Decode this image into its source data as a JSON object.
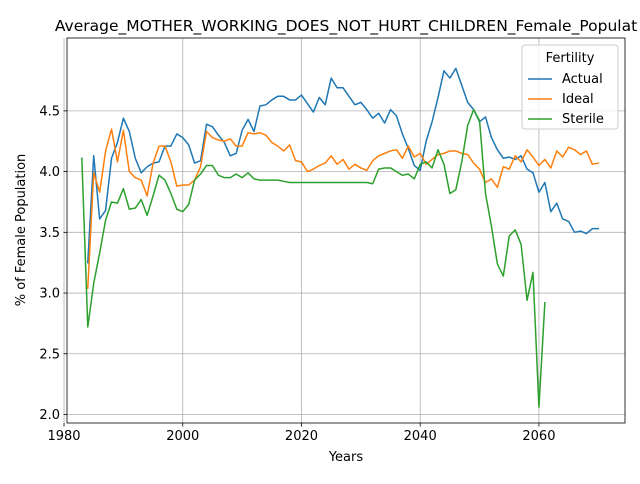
{
  "chart_data": {
    "type": "line",
    "title": "Average_MOTHER_WORKING_DOES_NOT_HURT_CHILDREN_Female_Populat",
    "xlabel": "Years",
    "ylabel": "% of Female Population",
    "xlim": [
      1980.5,
      2074.5
    ],
    "ylim": [
      1.93,
      5.1
    ],
    "xticks": [
      1980,
      2000,
      2020,
      2040,
      2060
    ],
    "xtick_labels": [
      "1980",
      "2000",
      "2020",
      "2040",
      "2060"
    ],
    "yticks": [
      2.0,
      2.5,
      3.0,
      3.5,
      4.0,
      4.5
    ],
    "ytick_labels": [
      "2.0",
      "2.5",
      "3.0",
      "3.5",
      "4.0",
      "4.5"
    ],
    "grid": true,
    "legend": {
      "title": "Fertility",
      "placement": "top-right"
    },
    "series": [
      {
        "name": "Actual",
        "color": "#1f77b4",
        "points": [
          [
            1984,
            3.25
          ],
          [
            1985,
            4.13
          ],
          [
            1986,
            3.61
          ],
          [
            1987,
            3.68
          ],
          [
            1988,
            4.11
          ],
          [
            1989,
            4.24
          ],
          [
            1990,
            4.44
          ],
          [
            1991,
            4.33
          ],
          [
            1992,
            4.11
          ],
          [
            1993,
            3.99
          ],
          [
            1994,
            4.04
          ],
          [
            1995,
            4.07
          ],
          [
            1996,
            4.08
          ],
          [
            1997,
            4.21
          ],
          [
            1998,
            4.21
          ],
          [
            1999,
            4.31
          ],
          [
            2000,
            4.28
          ],
          [
            2001,
            4.22
          ],
          [
            2002,
            4.07
          ],
          [
            2003,
            4.09
          ],
          [
            2004,
            4.39
          ],
          [
            2005,
            4.37
          ],
          [
            2006,
            4.3
          ],
          [
            2007,
            4.24
          ],
          [
            2008,
            4.13
          ],
          [
            2009,
            4.15
          ],
          [
            2010,
            4.34
          ],
          [
            2011,
            4.43
          ],
          [
            2012,
            4.33
          ],
          [
            2013,
            4.54
          ],
          [
            2014,
            4.55
          ],
          [
            2015,
            4.59
          ],
          [
            2016,
            4.62
          ],
          [
            2017,
            4.62
          ],
          [
            2018,
            4.59
          ],
          [
            2019,
            4.59
          ],
          [
            2020,
            4.63
          ],
          [
            2021,
            4.56
          ],
          [
            2022,
            4.49
          ],
          [
            2023,
            4.61
          ],
          [
            2024,
            4.55
          ],
          [
            2025,
            4.77
          ],
          [
            2026,
            4.69
          ],
          [
            2027,
            4.69
          ],
          [
            2028,
            4.62
          ],
          [
            2029,
            4.55
          ],
          [
            2030,
            4.57
          ],
          [
            2031,
            4.51
          ],
          [
            2032,
            4.44
          ],
          [
            2033,
            4.48
          ],
          [
            2034,
            4.4
          ],
          [
            2035,
            4.51
          ],
          [
            2036,
            4.46
          ],
          [
            2037,
            4.31
          ],
          [
            2038,
            4.19
          ],
          [
            2039,
            4.05
          ],
          [
            2040,
            4.01
          ],
          [
            2041,
            4.25
          ],
          [
            2042,
            4.41
          ],
          [
            2043,
            4.61
          ],
          [
            2044,
            4.83
          ],
          [
            2045,
            4.77
          ],
          [
            2046,
            4.85
          ],
          [
            2047,
            4.71
          ],
          [
            2048,
            4.57
          ],
          [
            2049,
            4.51
          ],
          [
            2050,
            4.41
          ],
          [
            2051,
            4.45
          ],
          [
            2052,
            4.28
          ],
          [
            2053,
            4.18
          ],
          [
            2054,
            4.11
          ],
          [
            2055,
            4.12
          ],
          [
            2056,
            4.1
          ],
          [
            2057,
            4.13
          ],
          [
            2058,
            4.02
          ],
          [
            2059,
            3.99
          ],
          [
            2060,
            3.83
          ],
          [
            2061,
            3.91
          ],
          [
            2062,
            3.67
          ],
          [
            2063,
            3.74
          ],
          [
            2064,
            3.61
          ],
          [
            2065,
            3.59
          ],
          [
            2066,
            3.5
          ],
          [
            2067,
            3.51
          ],
          [
            2068,
            3.49
          ],
          [
            2069,
            3.53
          ],
          [
            2070,
            3.53
          ]
        ]
      },
      {
        "name": "Ideal",
        "color": "#ff7f0e",
        "points": [
          [
            1984,
            3.04
          ],
          [
            1985,
            3.99
          ],
          [
            1986,
            3.83
          ],
          [
            1987,
            4.17
          ],
          [
            1988,
            4.35
          ],
          [
            1989,
            4.08
          ],
          [
            1990,
            4.34
          ],
          [
            1991,
            4.0
          ],
          [
            1992,
            3.95
          ],
          [
            1993,
            3.93
          ],
          [
            1994,
            3.8
          ],
          [
            1995,
            4.07
          ],
          [
            1996,
            4.21
          ],
          [
            1997,
            4.21
          ],
          [
            1998,
            4.08
          ],
          [
            1999,
            3.88
          ],
          [
            2000,
            3.89
          ],
          [
            2001,
            3.89
          ],
          [
            2002,
            3.93
          ],
          [
            2003,
            4.04
          ],
          [
            2004,
            4.33
          ],
          [
            2005,
            4.28
          ],
          [
            2006,
            4.26
          ],
          [
            2007,
            4.25
          ],
          [
            2008,
            4.27
          ],
          [
            2009,
            4.21
          ],
          [
            2010,
            4.21
          ],
          [
            2011,
            4.32
          ],
          [
            2012,
            4.31
          ],
          [
            2013,
            4.32
          ],
          [
            2014,
            4.3
          ],
          [
            2015,
            4.24
          ],
          [
            2016,
            4.21
          ],
          [
            2017,
            4.17
          ],
          [
            2018,
            4.22
          ],
          [
            2019,
            4.09
          ],
          [
            2020,
            4.08
          ],
          [
            2021,
            4.0
          ],
          [
            2022,
            4.02
          ],
          [
            2023,
            4.05
          ],
          [
            2024,
            4.07
          ],
          [
            2025,
            4.13
          ],
          [
            2026,
            4.06
          ],
          [
            2027,
            4.1
          ],
          [
            2028,
            4.02
          ],
          [
            2029,
            4.06
          ],
          [
            2030,
            4.03
          ],
          [
            2031,
            4.01
          ],
          [
            2032,
            4.09
          ],
          [
            2033,
            4.13
          ],
          [
            2034,
            4.15
          ],
          [
            2035,
            4.17
          ],
          [
            2036,
            4.18
          ],
          [
            2037,
            4.11
          ],
          [
            2038,
            4.21
          ],
          [
            2039,
            4.12
          ],
          [
            2040,
            4.15
          ],
          [
            2041,
            4.06
          ],
          [
            2042,
            4.1
          ],
          [
            2043,
            4.14
          ],
          [
            2044,
            4.15
          ],
          [
            2045,
            4.17
          ],
          [
            2046,
            4.17
          ],
          [
            2047,
            4.15
          ],
          [
            2048,
            4.14
          ],
          [
            2049,
            4.07
          ],
          [
            2050,
            4.02
          ],
          [
            2051,
            3.91
          ],
          [
            2052,
            3.94
          ],
          [
            2053,
            3.87
          ],
          [
            2054,
            4.04
          ],
          [
            2055,
            4.02
          ],
          [
            2056,
            4.13
          ],
          [
            2057,
            4.08
          ],
          [
            2058,
            4.18
          ],
          [
            2059,
            4.12
          ],
          [
            2060,
            4.05
          ],
          [
            2061,
            4.1
          ],
          [
            2062,
            4.03
          ],
          [
            2063,
            4.17
          ],
          [
            2064,
            4.12
          ],
          [
            2065,
            4.2
          ],
          [
            2066,
            4.18
          ],
          [
            2067,
            4.14
          ],
          [
            2068,
            4.17
          ],
          [
            2069,
            4.06
          ],
          [
            2070,
            4.07
          ]
        ]
      },
      {
        "name": "Sterile",
        "color": "#2ca02c",
        "points": [
          [
            1983,
            4.11
          ],
          [
            1984,
            2.72
          ],
          [
            1985,
            3.08
          ],
          [
            1986,
            3.33
          ],
          [
            1987,
            3.6
          ],
          [
            1988,
            3.75
          ],
          [
            1989,
            3.74
          ],
          [
            1990,
            3.86
          ],
          [
            1991,
            3.69
          ],
          [
            1992,
            3.7
          ],
          [
            1993,
            3.77
          ],
          [
            1994,
            3.64
          ],
          [
            1995,
            3.8
          ],
          [
            1996,
            3.97
          ],
          [
            1997,
            3.93
          ],
          [
            1998,
            3.82
          ],
          [
            1999,
            3.69
          ],
          [
            2000,
            3.67
          ],
          [
            2001,
            3.73
          ],
          [
            2002,
            3.93
          ],
          [
            2003,
            3.98
          ],
          [
            2004,
            4.05
          ],
          [
            2005,
            4.05
          ],
          [
            2006,
            3.97
          ],
          [
            2007,
            3.95
          ],
          [
            2008,
            3.95
          ],
          [
            2009,
            3.98
          ],
          [
            2010,
            3.95
          ],
          [
            2011,
            3.99
          ],
          [
            2012,
            3.94
          ],
          [
            2013,
            3.93
          ],
          [
            2014,
            3.93
          ],
          [
            2015,
            3.93
          ],
          [
            2016,
            3.93
          ],
          [
            2017,
            3.92
          ],
          [
            2018,
            3.91
          ],
          [
            2019,
            3.91
          ],
          [
            2020,
            3.91
          ],
          [
            2021,
            3.91
          ],
          [
            2022,
            3.91
          ],
          [
            2023,
            3.91
          ],
          [
            2024,
            3.91
          ],
          [
            2025,
            3.91
          ],
          [
            2026,
            3.91
          ],
          [
            2027,
            3.91
          ],
          [
            2028,
            3.91
          ],
          [
            2029,
            3.91
          ],
          [
            2030,
            3.91
          ],
          [
            2031,
            3.91
          ],
          [
            2032,
            3.9
          ],
          [
            2033,
            4.02
          ],
          [
            2034,
            4.03
          ],
          [
            2035,
            4.03
          ],
          [
            2036,
            4.0
          ],
          [
            2037,
            3.97
          ],
          [
            2038,
            3.98
          ],
          [
            2039,
            3.94
          ],
          [
            2040,
            4.06
          ],
          [
            2041,
            4.08
          ],
          [
            2042,
            4.03
          ],
          [
            2043,
            4.18
          ],
          [
            2044,
            4.06
          ],
          [
            2045,
            3.82
          ],
          [
            2046,
            3.85
          ],
          [
            2047,
            4.08
          ],
          [
            2048,
            4.38
          ],
          [
            2049,
            4.51
          ],
          [
            2050,
            4.42
          ],
          [
            2051,
            3.82
          ],
          [
            2052,
            3.55
          ],
          [
            2053,
            3.24
          ],
          [
            2054,
            3.14
          ],
          [
            2055,
            3.47
          ],
          [
            2056,
            3.52
          ],
          [
            2057,
            3.4
          ],
          [
            2058,
            2.94
          ],
          [
            2059,
            3.17
          ],
          [
            2060,
            2.06
          ],
          [
            2061,
            2.92
          ]
        ]
      }
    ]
  }
}
